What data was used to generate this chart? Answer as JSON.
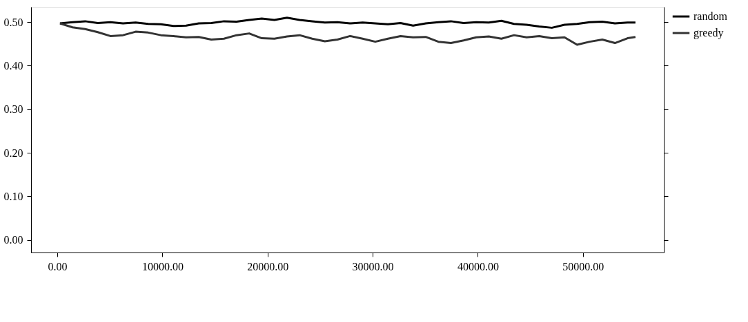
{
  "chart_data": {
    "type": "line",
    "x": [
      250,
      1450,
      2650,
      3850,
      5050,
      6250,
      7450,
      8650,
      9850,
      11050,
      12250,
      13450,
      14650,
      15850,
      17050,
      18250,
      19450,
      20650,
      21850,
      23050,
      24250,
      25450,
      26650,
      27850,
      29050,
      30250,
      31450,
      32650,
      33850,
      35050,
      36250,
      37450,
      38650,
      39850,
      41050,
      42250,
      43450,
      44650,
      45850,
      47050,
      48250,
      49450,
      50650,
      51850,
      53050,
      54250,
      55000
    ],
    "series": [
      {
        "name": "random",
        "color": "#000000",
        "values": [
          0.497,
          0.5,
          0.502,
          0.498,
          0.5,
          0.497,
          0.499,
          0.496,
          0.495,
          0.491,
          0.492,
          0.497,
          0.498,
          0.502,
          0.501,
          0.505,
          0.508,
          0.505,
          0.51,
          0.505,
          0.502,
          0.499,
          0.5,
          0.497,
          0.499,
          0.497,
          0.495,
          0.498,
          0.492,
          0.497,
          0.5,
          0.502,
          0.498,
          0.5,
          0.499,
          0.503,
          0.496,
          0.494,
          0.49,
          0.487,
          0.494,
          0.496,
          0.5,
          0.501,
          0.497,
          0.499,
          0.499
        ]
      },
      {
        "name": "greedy",
        "color": "#333333",
        "values": [
          0.497,
          0.488,
          0.484,
          0.477,
          0.468,
          0.47,
          0.478,
          0.476,
          0.47,
          0.468,
          0.465,
          0.466,
          0.46,
          0.462,
          0.47,
          0.474,
          0.463,
          0.462,
          0.467,
          0.47,
          0.462,
          0.456,
          0.46,
          0.468,
          0.462,
          0.455,
          0.462,
          0.468,
          0.465,
          0.466,
          0.455,
          0.452,
          0.458,
          0.465,
          0.467,
          0.462,
          0.47,
          0.465,
          0.468,
          0.463,
          0.465,
          0.448,
          0.455,
          0.46,
          0.452,
          0.463,
          0.466
        ]
      }
    ],
    "xlim": [
      -2500,
      57700
    ],
    "xticks": [
      {
        "value": 0,
        "label": "0.00"
      },
      {
        "value": 10000,
        "label": "10000.00"
      },
      {
        "value": 20000,
        "label": "20000.00"
      },
      {
        "value": 30000,
        "label": "30000.00"
      },
      {
        "value": 40000,
        "label": "40000.00"
      },
      {
        "value": 50000,
        "label": "50000.00"
      }
    ],
    "ylim": [
      -0.029,
      0.535
    ],
    "yticks": [
      {
        "value": 0,
        "label": "0.00"
      },
      {
        "value": 0.1,
        "label": "0.10"
      },
      {
        "value": 0.2,
        "label": "0.20"
      },
      {
        "value": 0.3,
        "label": "0.30"
      },
      {
        "value": 0.4,
        "label": "0.40"
      },
      {
        "value": 0.5,
        "label": "0.50"
      }
    ],
    "legend": "top right",
    "grid": false,
    "marker": "none",
    "line_style": "solid"
  }
}
